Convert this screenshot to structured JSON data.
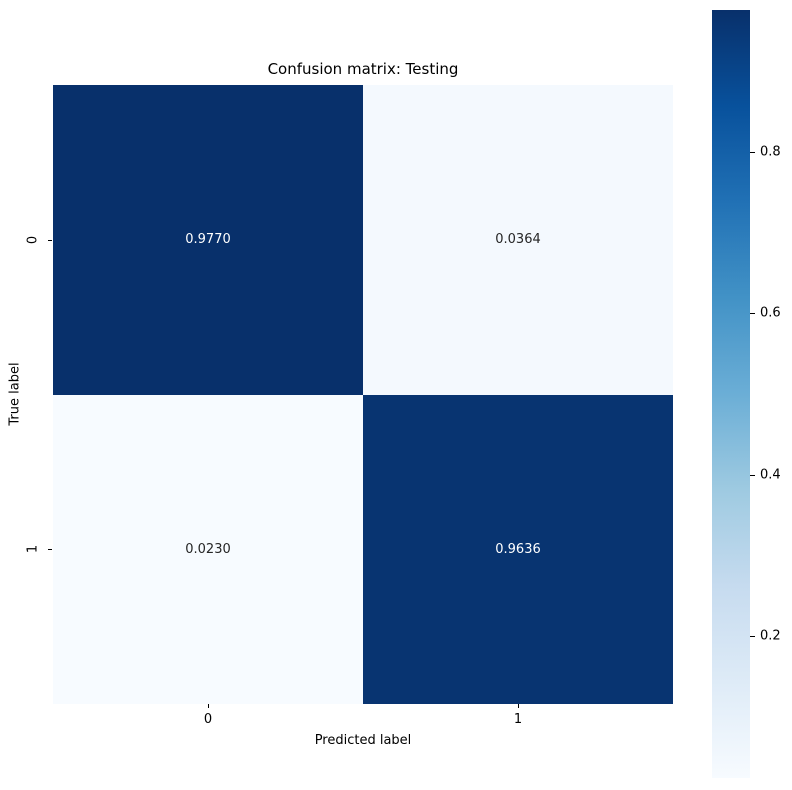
{
  "figure": {
    "background": "#ffffff",
    "text_color": "#000000"
  },
  "chart_data": {
    "type": "heatmap",
    "title": "Confusion matrix: Testing",
    "xlabel": "Predicted label",
    "ylabel": "True label",
    "x_tick_labels": [
      "0",
      "1"
    ],
    "y_tick_labels": [
      "0",
      "1"
    ],
    "matrix": [
      [
        0.977,
        0.0364
      ],
      [
        0.023,
        0.9636
      ]
    ],
    "cell_text": [
      [
        "0.9770",
        "0.0364"
      ],
      [
        "0.0230",
        "0.9636"
      ]
    ],
    "vmin": 0.023,
    "vmax": 0.977,
    "grid": false,
    "colormap": {
      "name": "Blues",
      "stops": [
        "#f7fbff",
        "#deebf7",
        "#c6dbef",
        "#9ecae1",
        "#6baed6",
        "#4292c6",
        "#2171b5",
        "#08519c",
        "#08306b"
      ]
    },
    "colorbar": {
      "position": "right",
      "ticks": [
        0.2,
        0.4,
        0.6,
        0.8
      ],
      "tick_labels": [
        "0.2",
        "0.4",
        "0.6",
        "0.8"
      ]
    },
    "annotation_colors": {
      "on_dark": "#ffffff",
      "on_light": "#262626"
    }
  }
}
